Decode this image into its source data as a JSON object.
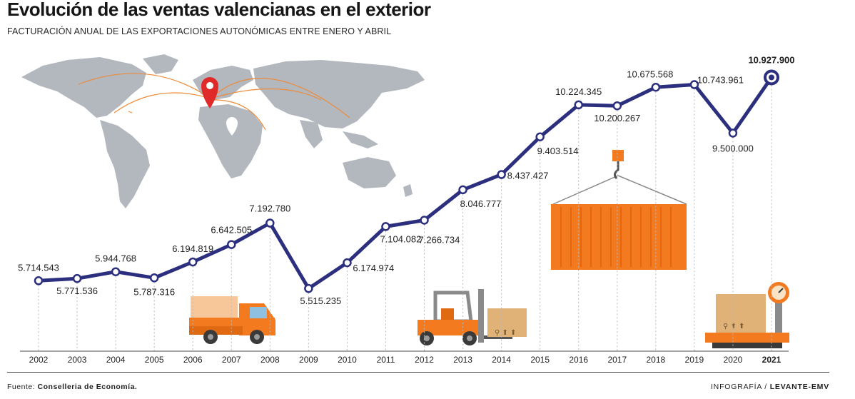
{
  "header": {
    "title": "Evolución de las ventas valencianas en el exterior",
    "subtitle": "FACTURACIÓN ANUAL DE LAS EXPORTACIONES AUTONÓMICAS ENTRE ENERO Y ABRIL"
  },
  "footer": {
    "source_label": "Fuente:",
    "source_value": "Conselleria de Economía.",
    "credit_label": "INFOGRAFÍA /",
    "credit_value": "LEVANTE-EMV"
  },
  "colors": {
    "line": "#2b2f7e",
    "highlight": "#2b2f7e",
    "map": "#b3b8bf",
    "routes": "#ec8b3a",
    "pin": "#e02a2a",
    "container": "#f47a20",
    "box": "#d9a464"
  },
  "icons": [
    "world-map-icon",
    "location-pin-icon",
    "truck-icon",
    "forklift-icon",
    "container-icon",
    "scale-icon",
    "box-icon"
  ],
  "chart_data": {
    "type": "line",
    "x": [
      "2002",
      "2003",
      "2004",
      "2005",
      "2006",
      "2007",
      "2008",
      "2009",
      "2010",
      "2011",
      "2012",
      "2013",
      "2014",
      "2015",
      "2016",
      "2017",
      "2018",
      "2019",
      "2020",
      "2021"
    ],
    "values": [
      5714543,
      5771536,
      5944768,
      5787316,
      6194819,
      6642505,
      7192780,
      5515235,
      6174974,
      7104082,
      7266734,
      8046777,
      8437427,
      9403514,
      10224345,
      10200267,
      10675568,
      10743961,
      9500000,
      10927900
    ],
    "labels": [
      "5.714.543",
      "5.771.536",
      "5.944.768",
      "5.787.316",
      "6.194.819",
      "6.642.505",
      "7.192.780",
      "5.515.235",
      "6.174.974",
      "7.104.082",
      "7.266.734",
      "8.046.777",
      "8.437.427",
      "9.403.514",
      "10.224.345",
      "10.200.267",
      "10.675.568",
      "10.743.961",
      "9.500.000",
      "10.927.900"
    ],
    "highlight_label": "10.927.900",
    "highlight_index": 19,
    "grid": false,
    "legend": "none"
  }
}
